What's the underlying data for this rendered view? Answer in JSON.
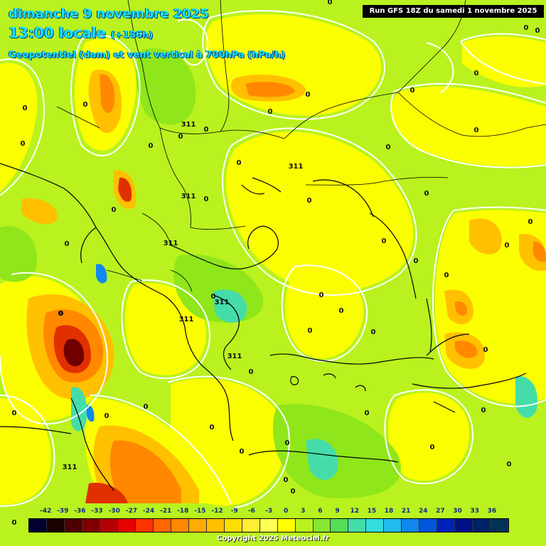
{
  "header": {
    "date": "dimanche 9 novembre 2025",
    "time": "13:00 locale",
    "offset": "(+186h)",
    "parameter": "Geopotentiel (dam) et vent vertical à 700hPa (hPa/h)",
    "run": "Run GFS 18Z du samedi 1 novembre 2025"
  },
  "legend": {
    "ticks": [
      "-42",
      "-39",
      "-36",
      "-33",
      "-30",
      "-27",
      "-24",
      "-21",
      "-18",
      "-15",
      "-12",
      "-9",
      "-6",
      "-3",
      "0",
      "3",
      "6",
      "9",
      "12",
      "15",
      "18",
      "21",
      "24",
      "27",
      "30",
      "33",
      "36"
    ],
    "colors": [
      "#000033",
      "#1a0000",
      "#4d0000",
      "#800000",
      "#b30000",
      "#e60000",
      "#ff3300",
      "#ff6600",
      "#ff8800",
      "#ffaa00",
      "#ffc000",
      "#ffdd00",
      "#ffee33",
      "#ffff55",
      "#ffff00",
      "#b9f21e",
      "#88e632",
      "#55dd55",
      "#44ddaa",
      "#33dddd",
      "#22bbee",
      "#1188ee",
      "#0055dd",
      "#0022bb",
      "#001188",
      "#002266",
      "#003355"
    ]
  },
  "map": {
    "palette": {
      "yellow": "#ffff00",
      "lightyellow": "#f3f600",
      "green": "#b9f21e",
      "darkgreen": "#8fe61a",
      "orange": "#ffc000",
      "darkorange": "#ff8800",
      "red": "#e03000",
      "darkred": "#700000",
      "cyan": "#44ddaa",
      "blue": "#1188ee"
    },
    "value_labels": [
      "0",
      "0",
      "0",
      "0",
      "0",
      "0",
      "0",
      "0",
      "0",
      "0",
      "0",
      "0",
      "0",
      "0",
      "0",
      "0",
      "0",
      "0",
      "0",
      "0",
      "0",
      "0",
      "0",
      "0",
      "0",
      "0",
      "0",
      "0",
      "0",
      "0",
      "0",
      "0",
      "0",
      "0",
      "0",
      "0",
      "0",
      "0",
      "0",
      "0",
      "0",
      "0",
      "0",
      "0",
      "0",
      "0",
      "0",
      "0"
    ],
    "geopotential_labels": [
      "311",
      "311",
      "311",
      "311",
      "311",
      "311",
      "311",
      "311"
    ]
  },
  "footer": {
    "copyright": "Copyright 2025 Meteociel.fr"
  }
}
